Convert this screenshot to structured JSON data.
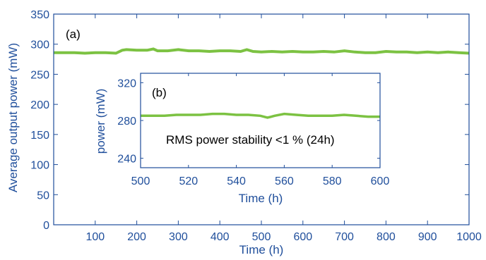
{
  "chart_data": [
    {
      "type": "line",
      "panel_label": "(a)",
      "xlabel": "Time (h)",
      "ylabel": "Average output power (mW)",
      "xlim": [
        0,
        1000
      ],
      "ylim": [
        0,
        350
      ],
      "x_ticks": [
        100,
        200,
        300,
        400,
        500,
        600,
        700,
        800,
        900,
        1000
      ],
      "y_ticks": [
        0,
        50,
        100,
        150,
        200,
        250,
        300,
        350
      ],
      "grid": false,
      "series_color": "#7cc242",
      "axis_color": "#1f4e9b",
      "series": [
        {
          "x": [
            0,
            25,
            50,
            75,
            100,
            125,
            150,
            165,
            175,
            200,
            225,
            240,
            250,
            275,
            300,
            325,
            350,
            375,
            400,
            425,
            450,
            465,
            480,
            500,
            525,
            550,
            575,
            600,
            625,
            650,
            675,
            700,
            725,
            750,
            775,
            800,
            825,
            850,
            875,
            900,
            925,
            950,
            975,
            1000
          ],
          "y": [
            286,
            286,
            286,
            285,
            286,
            286,
            285,
            290,
            291,
            290,
            290,
            292,
            289,
            289,
            291,
            289,
            289,
            288,
            289,
            289,
            288,
            291,
            288,
            287,
            288,
            287,
            288,
            287,
            287,
            288,
            287,
            289,
            287,
            286,
            286,
            288,
            287,
            287,
            286,
            287,
            286,
            287,
            286,
            285
          ]
        }
      ]
    },
    {
      "type": "line",
      "panel_label": "(b)",
      "xlabel": "Time (h)",
      "ylabel": "power (mW)",
      "xlim": [
        500,
        600
      ],
      "ylim": [
        230,
        330
      ],
      "x_ticks": [
        500,
        520,
        540,
        560,
        580,
        600
      ],
      "y_ticks": [
        240,
        280,
        320
      ],
      "grid": false,
      "annotation": "RMS power stability <1 % (24h)",
      "series_color": "#7cc242",
      "axis_color": "#1f4e9b",
      "series": [
        {
          "x": [
            500,
            505,
            510,
            515,
            520,
            525,
            530,
            535,
            540,
            545,
            550,
            553,
            556,
            560,
            565,
            570,
            575,
            580,
            585,
            590,
            595,
            600
          ],
          "y": [
            285,
            285,
            285,
            286,
            286,
            286,
            287,
            287,
            286,
            286,
            285,
            283,
            285,
            287,
            286,
            285,
            285,
            285,
            286,
            285,
            284,
            284
          ]
        }
      ]
    }
  ]
}
